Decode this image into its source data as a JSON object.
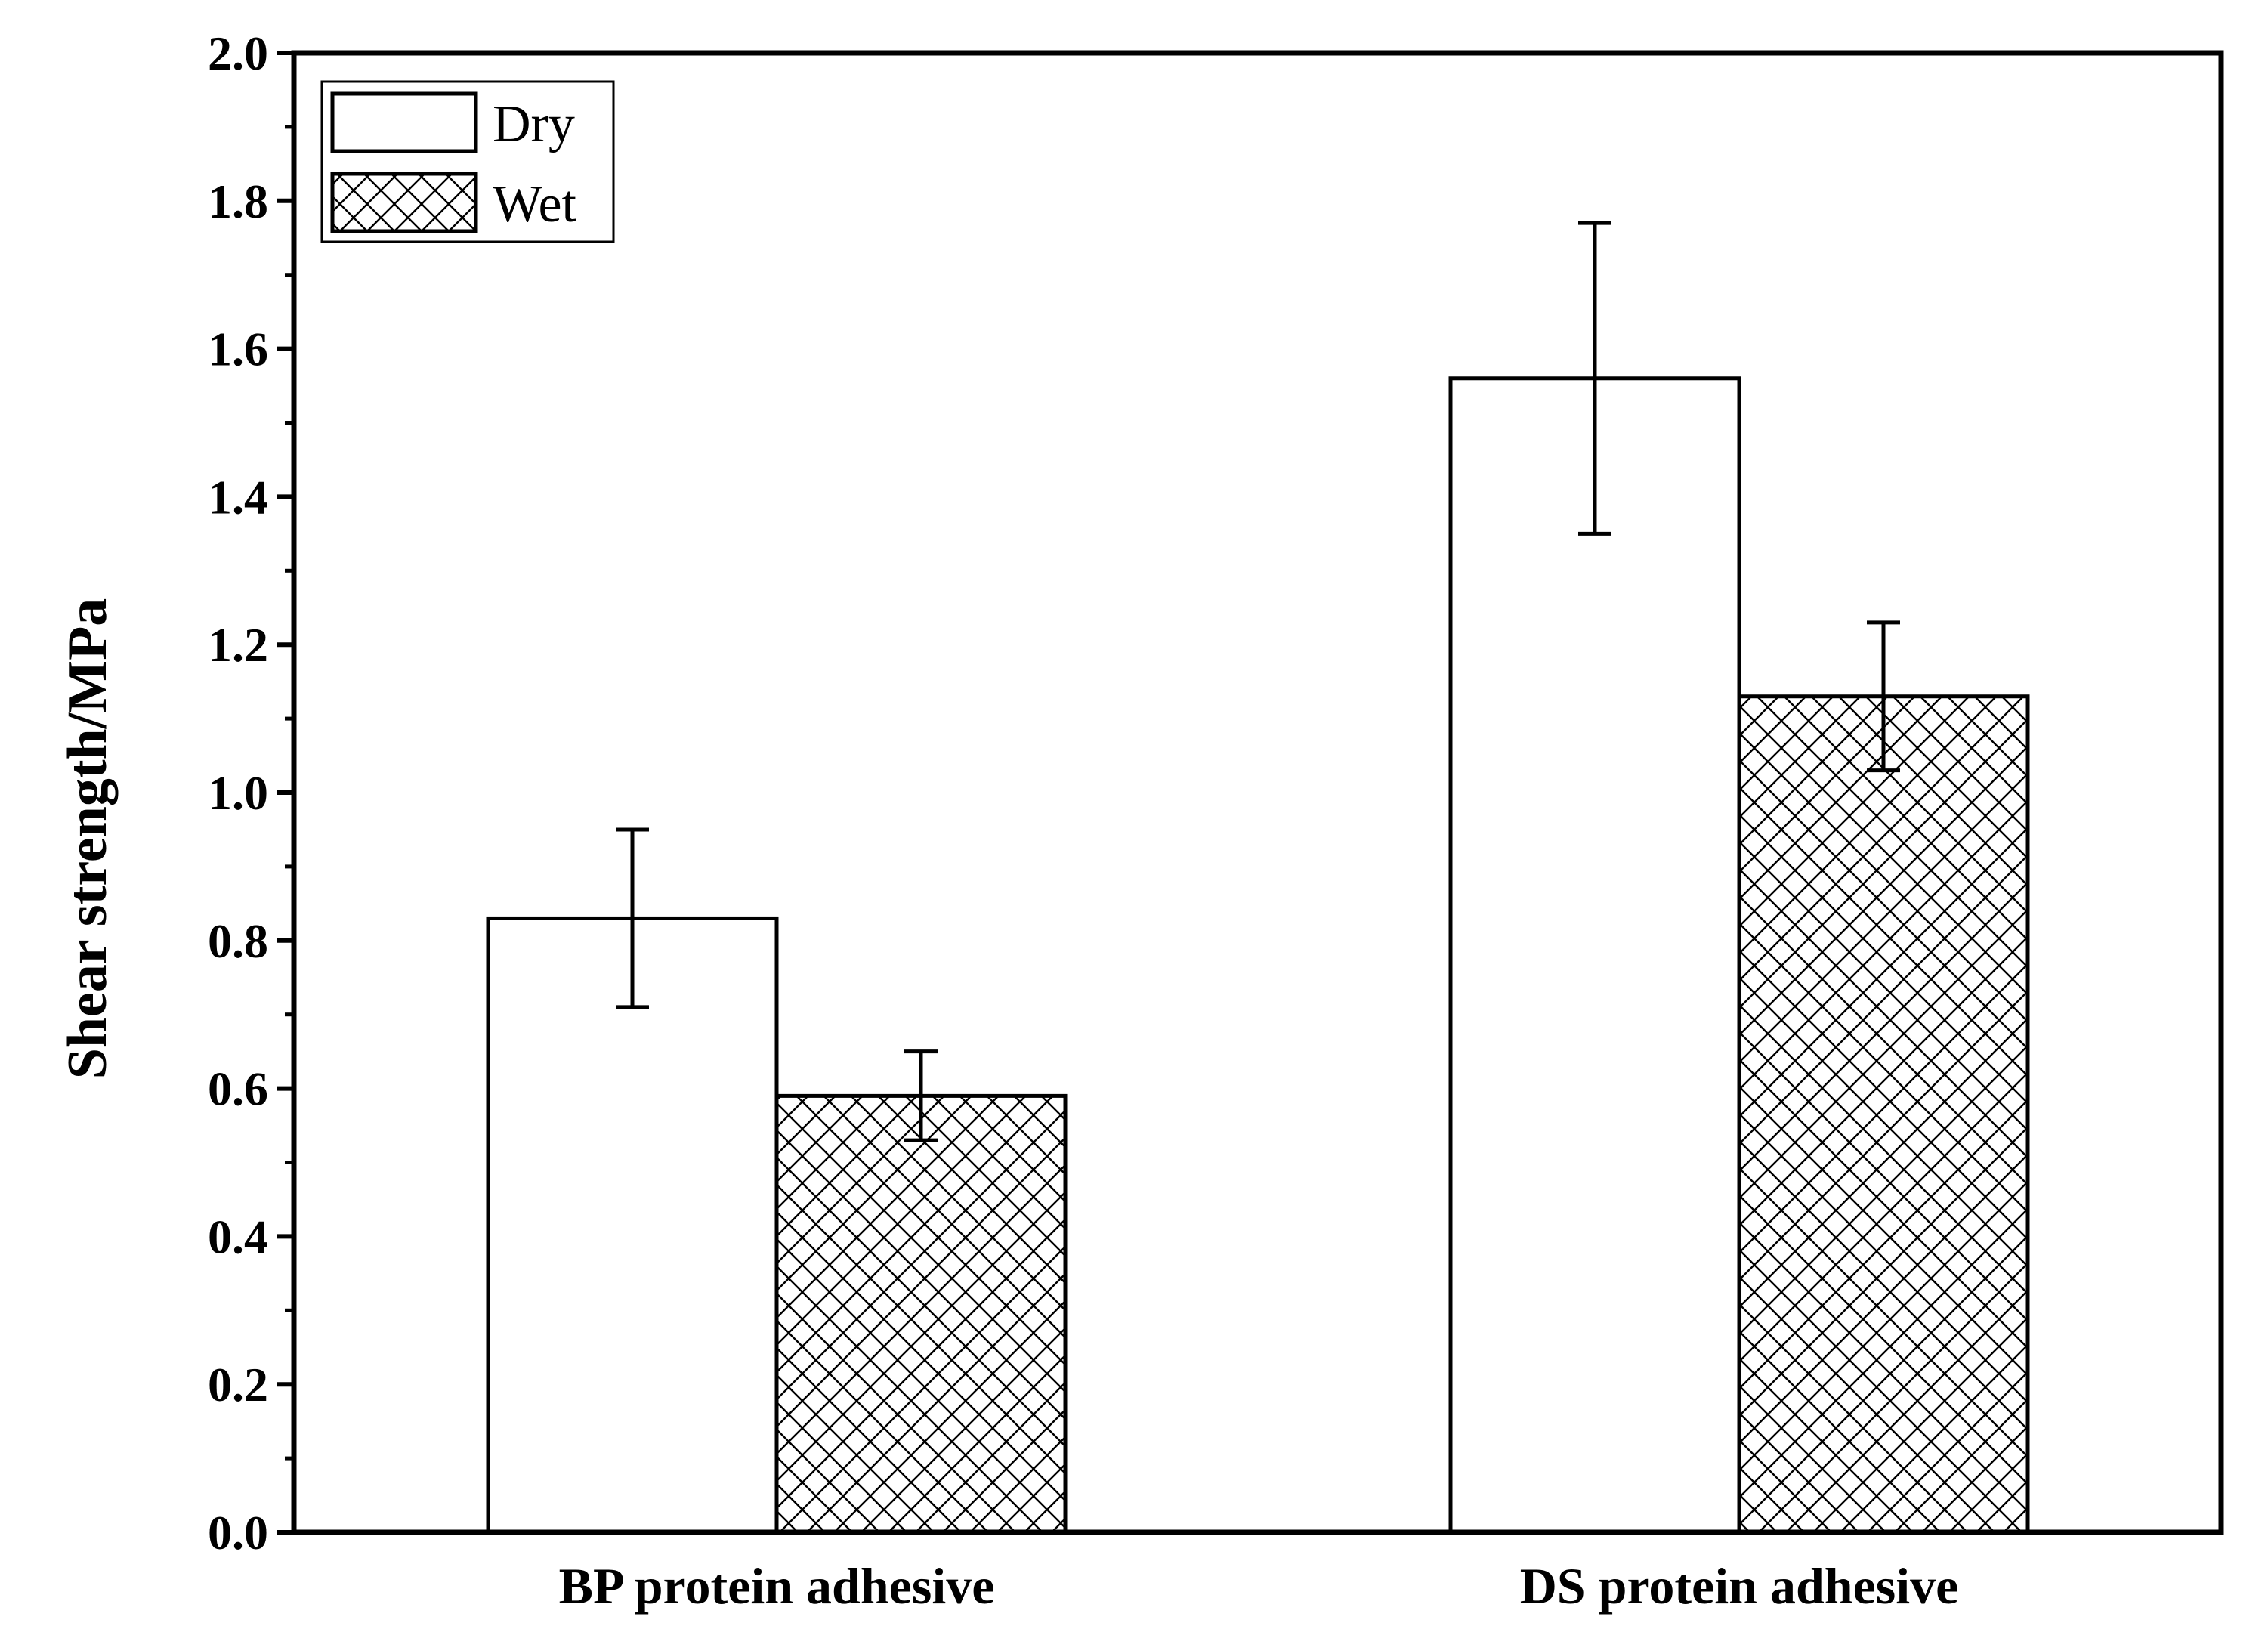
{
  "chart_data": {
    "type": "bar",
    "title": "",
    "xlabel": "",
    "ylabel": "Shear strength/MPa",
    "ylim": [
      0.0,
      2.0
    ],
    "yticks": [
      "0.0",
      "0.2",
      "0.4",
      "0.6",
      "0.8",
      "1.0",
      "1.2",
      "1.4",
      "1.6",
      "1.8",
      "2.0"
    ],
    "ytick_values": [
      0.0,
      0.2,
      0.4,
      0.6,
      0.8,
      1.0,
      1.2,
      1.4,
      1.6,
      1.8,
      2.0
    ],
    "categories": [
      "BP protein adhesive",
      "DS protein adhesive"
    ],
    "series": [
      {
        "name": "Dry",
        "pattern": "none",
        "values": [
          0.83,
          1.56
        ],
        "errors": [
          0.12,
          0.21
        ]
      },
      {
        "name": "Wet",
        "pattern": "crosshatch",
        "values": [
          0.59,
          1.13
        ],
        "errors": [
          0.06,
          0.1
        ]
      }
    ],
    "grid": false,
    "legend": {
      "position": "top-left",
      "entries": [
        "Dry",
        "Wet"
      ]
    },
    "colors": {
      "stroke": "#000000",
      "fill": "#ffffff"
    }
  }
}
